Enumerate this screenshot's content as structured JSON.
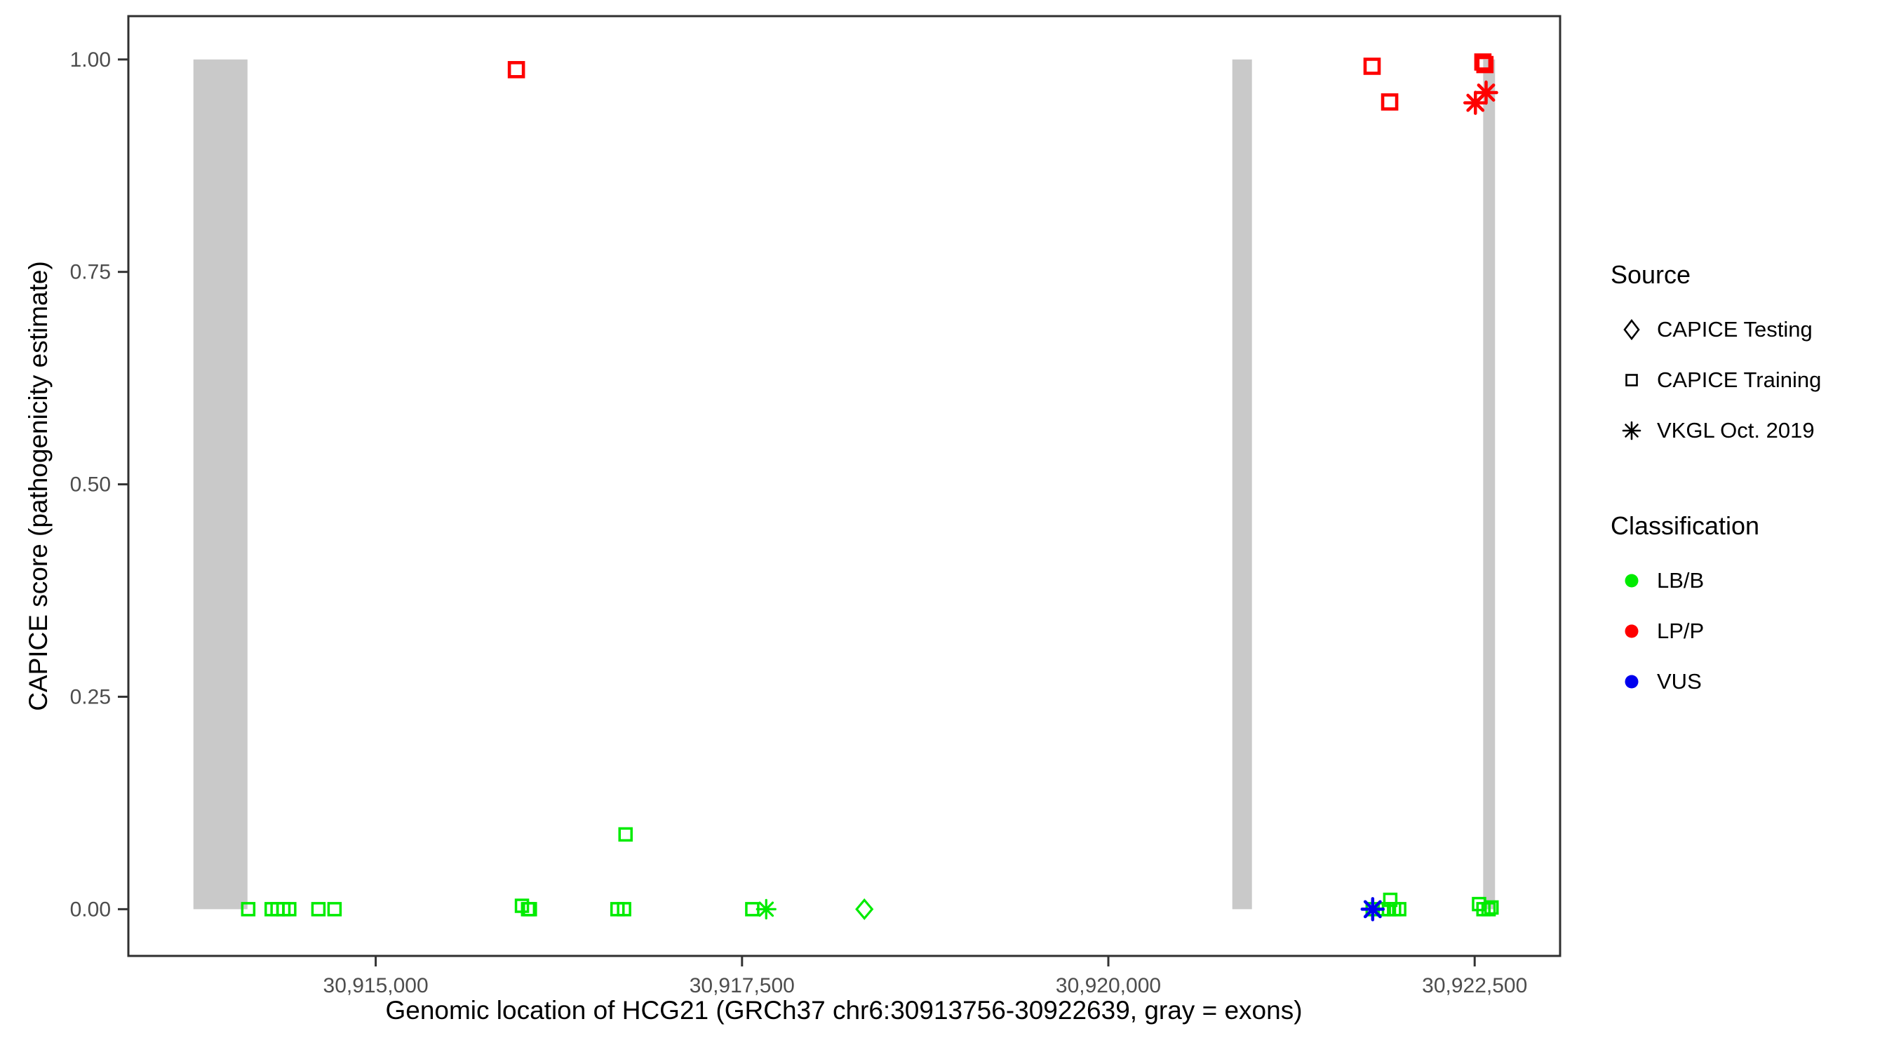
{
  "figure": {
    "x_axis_title": "Genomic location of HCG21 (GRCh37 chr6:30913756-30922639, gray = exons)",
    "y_axis_title": "CAPICE score (pathogenicity estimate)"
  },
  "legend": {
    "source": {
      "title": "Source",
      "items": [
        {
          "marker": "diamond",
          "label": "CAPICE Testing"
        },
        {
          "marker": "square",
          "label": "CAPICE Training"
        },
        {
          "marker": "asterisk",
          "label": "VKGL Oct. 2019"
        }
      ]
    },
    "classification": {
      "title": "Classification",
      "items": [
        {
          "color": "#00EB00",
          "label": "LB/B"
        },
        {
          "color": "#FE0000",
          "label": "LP/P"
        },
        {
          "color": "#0000EE",
          "label": "VUS"
        }
      ]
    }
  },
  "chart_data": {
    "type": "scatter",
    "xlabel": "Genomic location of HCG21 (GRCh37 chr6:30913756-30922639, gray = exons)",
    "ylabel": "CAPICE score (pathogenicity estimate)",
    "x_domain": [
      30913312,
      30923083
    ],
    "y_domain": [
      -0.055,
      1.051
    ],
    "x_ticks": [
      {
        "value": 30915000,
        "label": "30,915,000"
      },
      {
        "value": 30917500,
        "label": "30,917,500"
      },
      {
        "value": 30920000,
        "label": "30,920,000"
      },
      {
        "value": 30922500,
        "label": "30,922,500"
      }
    ],
    "y_ticks": [
      {
        "value": 0.0,
        "label": "0.00"
      },
      {
        "value": 0.25,
        "label": "0.25"
      },
      {
        "value": 0.5,
        "label": "0.50"
      },
      {
        "value": 0.75,
        "label": "0.75"
      },
      {
        "value": 1.0,
        "label": "1.00"
      }
    ],
    "exons": {
      "color": "#C9C9C9",
      "y_span": [
        0,
        1
      ],
      "regions": [
        [
          30913756,
          30914125
        ],
        [
          30920846,
          30920980
        ],
        [
          30922558,
          30922639
        ]
      ]
    },
    "series": [
      {
        "name": "LB/B - CAPICE Training",
        "classification": "LB/B",
        "source": "CAPICE Training",
        "marker": "square",
        "color": "#00EB00",
        "points": [
          [
            30914130,
            0.0
          ],
          [
            30914290,
            0.0
          ],
          [
            30914330,
            0.0
          ],
          [
            30914370,
            0.0
          ],
          [
            30914410,
            0.0
          ],
          [
            30914609,
            0.0
          ],
          [
            30914719,
            0.0
          ],
          [
            30915998,
            0.004
          ],
          [
            30916040,
            0.0
          ],
          [
            30916052,
            0.0
          ],
          [
            30916650,
            0.0
          ],
          [
            30916695,
            0.0
          ],
          [
            30916705,
            0.088
          ],
          [
            30917570,
            0.0
          ],
          [
            30921804,
            0.0
          ],
          [
            30921880,
            0.0
          ],
          [
            30921915,
            0.0
          ],
          [
            30921950,
            0.0
          ],
          [
            30921985,
            0.0
          ],
          [
            30921924,
            0.011
          ],
          [
            30922530,
            0.006
          ],
          [
            30922560,
            0.0
          ],
          [
            30922595,
            0.0
          ],
          [
            30922615,
            0.002
          ]
        ]
      },
      {
        "name": "LB/B - CAPICE Testing",
        "classification": "LB/B",
        "source": "CAPICE Testing",
        "marker": "diamond",
        "color": "#00EB00",
        "points": [
          [
            30918335,
            0.0
          ]
        ]
      },
      {
        "name": "LB/B - VKGL Oct. 2019",
        "classification": "LB/B",
        "source": "VKGL Oct. 2019",
        "marker": "asterisk",
        "color": "#00EB00",
        "points": [
          [
            30917665,
            0.0
          ]
        ]
      },
      {
        "name": "LP/P - CAPICE Training",
        "classification": "LP/P",
        "source": "CAPICE Training",
        "marker": "square",
        "color": "#FE0000",
        "points": [
          [
            30915960,
            0.988
          ],
          [
            30921800,
            0.992
          ],
          [
            30921920,
            0.95
          ],
          [
            30922556,
            0.997
          ],
          [
            30922570,
            0.994
          ]
        ]
      },
      {
        "name": "LP/P - VKGL Oct. 2019",
        "classification": "LP/P",
        "source": "VKGL Oct. 2019",
        "marker": "asterisk",
        "color": "#FE0000",
        "points": [
          [
            30922505,
            0.949
          ],
          [
            30922578,
            0.961
          ]
        ]
      },
      {
        "name": "VUS - VKGL Oct. 2019",
        "classification": "VUS",
        "source": "VKGL Oct. 2019",
        "marker": "asterisk",
        "color": "#0000EE",
        "points": [
          [
            30921804,
            0.0
          ]
        ]
      }
    ]
  }
}
